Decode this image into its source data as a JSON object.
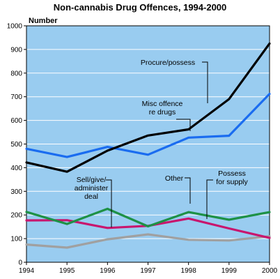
{
  "chart_data": {
    "type": "line",
    "title": "Non-cannabis Drug Offences, 1994-2000",
    "ylabel": "Number",
    "xlabel": "",
    "x": [
      1994,
      1995,
      1996,
      1997,
      1998,
      1999,
      2000
    ],
    "xticks": [
      "1994",
      "1995",
      "1996",
      "1997",
      "1998",
      "1999",
      "2000"
    ],
    "ylim": [
      0,
      1000
    ],
    "yticks": [
      "0",
      "100",
      "200",
      "300",
      "400",
      "500",
      "600",
      "700",
      "800",
      "900",
      "1000"
    ],
    "grid": true,
    "background": "#99ccf0",
    "series": [
      {
        "name": "Procure/possess",
        "color": "#000000",
        "values": [
          422,
          383,
          472,
          536,
          562,
          690,
          925
        ]
      },
      {
        "name": "Misc offence re drugs",
        "color": "#1a6cf0",
        "values": [
          480,
          445,
          488,
          455,
          527,
          535,
          712
        ]
      },
      {
        "name": "Other",
        "color": "#1e9146",
        "values": [
          213,
          162,
          226,
          152,
          212,
          180,
          212
        ]
      },
      {
        "name": "Sell/give/ administer deal",
        "color": "#c8166e",
        "values": [
          177,
          178,
          145,
          154,
          185,
          143,
          103
        ]
      },
      {
        "name": "Possess for supply",
        "color": "#a0a0a0",
        "values": [
          75,
          62,
          97,
          118,
          95,
          92,
          110
        ]
      }
    ],
    "annotations": [
      {
        "lines": [
          "Procure/possess"
        ]
      },
      {
        "lines": [
          "Misc offence",
          "re drugs"
        ]
      },
      {
        "lines": [
          "Sell/give/",
          "administer",
          "deal"
        ]
      },
      {
        "lines": [
          "Other"
        ]
      },
      {
        "lines": [
          "Possess",
          "for supply"
        ]
      }
    ]
  }
}
